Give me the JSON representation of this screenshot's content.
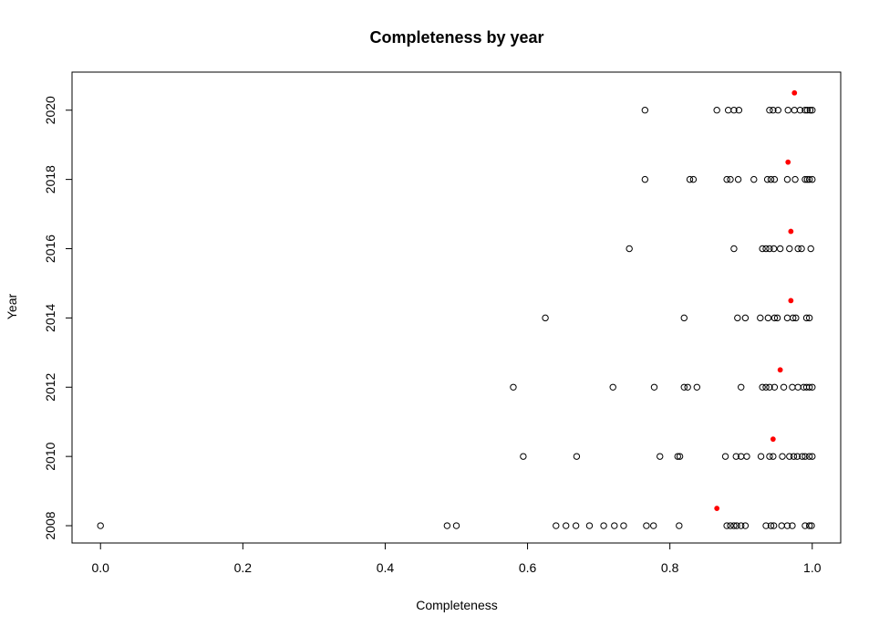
{
  "chart_data": {
    "type": "scatter",
    "title": "Completeness by year",
    "xlabel": "Completeness",
    "ylabel": "Year",
    "xlim": [
      -0.04,
      1.04
    ],
    "ylim": [
      2007.5,
      2021.1
    ],
    "x_ticks": [
      0.0,
      0.2,
      0.4,
      0.6,
      0.8,
      1.0
    ],
    "x_tick_labels": [
      "0.0",
      "0.2",
      "0.4",
      "0.6",
      "0.8",
      "1.0"
    ],
    "y_ticks": [
      2008,
      2010,
      2012,
      2014,
      2016,
      2018,
      2020
    ],
    "y_tick_labels": [
      "2008",
      "2010",
      "2012",
      "2014",
      "2016",
      "2018",
      "2020"
    ],
    "grid": false,
    "legend": "none",
    "series": [
      {
        "marker": "open-circle",
        "color": "#000000",
        "points": [
          [
            0.0,
            2008
          ],
          [
            0.487,
            2008
          ],
          [
            0.5,
            2008
          ],
          [
            0.64,
            2008
          ],
          [
            0.654,
            2008
          ],
          [
            0.668,
            2008
          ],
          [
            0.687,
            2008
          ],
          [
            0.707,
            2008
          ],
          [
            0.722,
            2008
          ],
          [
            0.735,
            2008
          ],
          [
            0.767,
            2008
          ],
          [
            0.777,
            2008
          ],
          [
            0.813,
            2008
          ],
          [
            0.88,
            2008
          ],
          [
            0.885,
            2008
          ],
          [
            0.89,
            2008
          ],
          [
            0.894,
            2008
          ],
          [
            0.9,
            2008
          ],
          [
            0.906,
            2008
          ],
          [
            0.935,
            2008
          ],
          [
            0.942,
            2008
          ],
          [
            0.946,
            2008
          ],
          [
            0.957,
            2008
          ],
          [
            0.965,
            2008
          ],
          [
            0.972,
            2008
          ],
          [
            0.99,
            2008
          ],
          [
            0.996,
            2008
          ],
          [
            0.999,
            2008
          ],
          [
            0.594,
            2010
          ],
          [
            0.669,
            2010
          ],
          [
            0.786,
            2010
          ],
          [
            0.811,
            2010
          ],
          [
            0.814,
            2010
          ],
          [
            0.878,
            2010
          ],
          [
            0.893,
            2010
          ],
          [
            0.9,
            2010
          ],
          [
            0.908,
            2010
          ],
          [
            0.928,
            2010
          ],
          [
            0.94,
            2010
          ],
          [
            0.945,
            2010
          ],
          [
            0.958,
            2010
          ],
          [
            0.968,
            2010
          ],
          [
            0.974,
            2010
          ],
          [
            0.979,
            2010
          ],
          [
            0.986,
            2010
          ],
          [
            0.99,
            2010
          ],
          [
            0.996,
            2010
          ],
          [
            1.0,
            2010
          ],
          [
            0.58,
            2012
          ],
          [
            0.72,
            2012
          ],
          [
            0.778,
            2012
          ],
          [
            0.82,
            2012
          ],
          [
            0.825,
            2012
          ],
          [
            0.838,
            2012
          ],
          [
            0.9,
            2012
          ],
          [
            0.93,
            2012
          ],
          [
            0.935,
            2012
          ],
          [
            0.94,
            2012
          ],
          [
            0.947,
            2012
          ],
          [
            0.96,
            2012
          ],
          [
            0.972,
            2012
          ],
          [
            0.98,
            2012
          ],
          [
            0.988,
            2012
          ],
          [
            0.992,
            2012
          ],
          [
            0.996,
            2012
          ],
          [
            1.0,
            2012
          ],
          [
            0.625,
            2014
          ],
          [
            0.82,
            2014
          ],
          [
            0.895,
            2014
          ],
          [
            0.906,
            2014
          ],
          [
            0.927,
            2014
          ],
          [
            0.938,
            2014
          ],
          [
            0.947,
            2014
          ],
          [
            0.951,
            2014
          ],
          [
            0.965,
            2014
          ],
          [
            0.973,
            2014
          ],
          [
            0.977,
            2014
          ],
          [
            0.992,
            2014
          ],
          [
            0.996,
            2014
          ],
          [
            0.743,
            2016
          ],
          [
            0.89,
            2016
          ],
          [
            0.93,
            2016
          ],
          [
            0.935,
            2016
          ],
          [
            0.94,
            2016
          ],
          [
            0.946,
            2016
          ],
          [
            0.955,
            2016
          ],
          [
            0.968,
            2016
          ],
          [
            0.98,
            2016
          ],
          [
            0.985,
            2016
          ],
          [
            0.998,
            2016
          ],
          [
            0.765,
            2018
          ],
          [
            0.828,
            2018
          ],
          [
            0.833,
            2018
          ],
          [
            0.88,
            2018
          ],
          [
            0.885,
            2018
          ],
          [
            0.896,
            2018
          ],
          [
            0.918,
            2018
          ],
          [
            0.937,
            2018
          ],
          [
            0.942,
            2018
          ],
          [
            0.947,
            2018
          ],
          [
            0.965,
            2018
          ],
          [
            0.976,
            2018
          ],
          [
            0.99,
            2018
          ],
          [
            0.993,
            2018
          ],
          [
            0.996,
            2018
          ],
          [
            1.0,
            2018
          ],
          [
            0.765,
            2020
          ],
          [
            0.866,
            2020
          ],
          [
            0.882,
            2020
          ],
          [
            0.89,
            2020
          ],
          [
            0.897,
            2020
          ],
          [
            0.94,
            2020
          ],
          [
            0.945,
            2020
          ],
          [
            0.952,
            2020
          ],
          [
            0.966,
            2020
          ],
          [
            0.975,
            2020
          ],
          [
            0.983,
            2020
          ],
          [
            0.99,
            2020
          ],
          [
            0.993,
            2020
          ],
          [
            0.997,
            2020
          ],
          [
            1.0,
            2020
          ]
        ]
      },
      {
        "marker": "filled-dot",
        "color": "#ff0000",
        "points": [
          [
            0.866,
            2008.5
          ],
          [
            0.945,
            2010.5
          ],
          [
            0.955,
            2012.5
          ],
          [
            0.97,
            2014.5
          ],
          [
            0.97,
            2016.5
          ],
          [
            0.966,
            2018.5
          ],
          [
            0.975,
            2020.5
          ]
        ]
      }
    ]
  }
}
